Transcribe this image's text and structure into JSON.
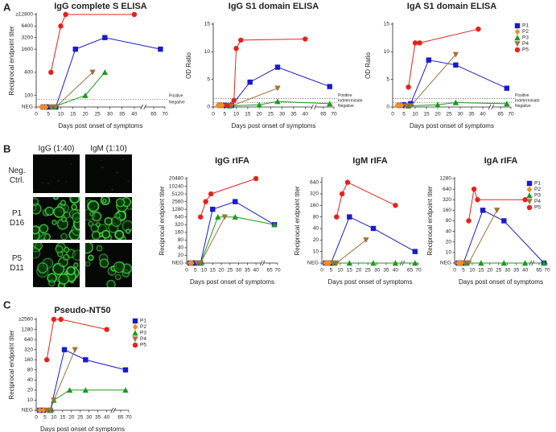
{
  "panel_labels": [
    "A",
    "B",
    "C"
  ],
  "micrographs": {
    "columns": [
      "IgG (1:40)",
      "IgM (1:10)"
    ],
    "rows": [
      "Neg. Ctrl.",
      "P1 D16",
      "P5 D11"
    ]
  },
  "chart_data": [
    {
      "type": "line",
      "title": "IgG complete S ELISA",
      "xlabel": "Days post onset of symptoms",
      "ylabel": "Reciprocal endpoint titer",
      "yscale": "log",
      "xlim": [
        0,
        70
      ],
      "axis_break": [
        42,
        62
      ],
      "xticks": [
        0,
        5,
        10,
        15,
        20,
        25,
        30,
        35,
        40,
        65,
        70
      ],
      "ylim": [
        50,
        12800
      ],
      "yticks": [
        {
          "value": 50,
          "label": "NEG"
        },
        100,
        400,
        1600,
        3200,
        6400,
        {
          "value": 12800,
          "label": "≥12800"
        }
      ],
      "cutoffs": [
        80
      ],
      "annotations": [
        "Positive",
        "Negative"
      ],
      "series": [
        {
          "name": "P1",
          "color": "#1a1acc",
          "marker": "square",
          "x": [
            3,
            4,
            5,
            8,
            16,
            28,
            68
          ],
          "values": [
            50,
            50,
            50,
            50,
            1600,
            3200,
            1600
          ]
        },
        {
          "name": "P2",
          "color": "#f0901e",
          "marker": "diamond",
          "x": [
            2,
            3,
            4
          ],
          "values": [
            50,
            50,
            50
          ]
        },
        {
          "name": "P3",
          "color": "#1a9a1a",
          "marker": "triangle-up",
          "x": [
            7,
            20,
            28
          ],
          "values": [
            50,
            100,
            400
          ]
        },
        {
          "name": "P4",
          "color": "#a0723a",
          "marker": "triangle-down",
          "x": [
            6,
            8,
            23
          ],
          "values": [
            50,
            50,
            400
          ]
        },
        {
          "name": "P5",
          "color": "#e8201a",
          "marker": "circle",
          "x": [
            6,
            10,
            12,
            40
          ],
          "values": [
            400,
            6400,
            12800,
            12800
          ]
        }
      ]
    },
    {
      "type": "line",
      "title": "IgG S1 domain ELISA",
      "xlabel": "Days post onset of symptoms",
      "ylabel": "OD Ratio",
      "yscale": "linear",
      "xlim": [
        0,
        70
      ],
      "axis_break": [
        42,
        62
      ],
      "xticks": [
        0,
        5,
        10,
        15,
        20,
        25,
        30,
        35,
        40,
        65,
        70
      ],
      "ylim": [
        0,
        15
      ],
      "yticks": [
        0,
        5,
        10,
        15
      ],
      "cutoffs": [
        0.8,
        1.5
      ],
      "annotations": [
        "Positive",
        "Indeterminate",
        "Negative"
      ],
      "series": [
        {
          "name": "P1",
          "color": "#1a1acc",
          "marker": "square",
          "x": [
            3,
            4,
            5,
            8,
            16,
            28,
            68
          ],
          "values": [
            0.3,
            0.3,
            0.3,
            0.3,
            4.5,
            7.2,
            3.7
          ]
        },
        {
          "name": "P2",
          "color": "#f0901e",
          "marker": "diamond",
          "x": [
            2,
            3,
            4
          ],
          "values": [
            0.3,
            0.3,
            0.3
          ]
        },
        {
          "name": "P3",
          "color": "#1a9a1a",
          "marker": "triangle-up",
          "x": [
            7,
            20,
            28,
            68
          ],
          "values": [
            0.2,
            0.4,
            1.0,
            0.6
          ]
        },
        {
          "name": "P4",
          "color": "#a0723a",
          "marker": "triangle-down",
          "x": [
            6,
            8,
            28
          ],
          "values": [
            0.2,
            0.2,
            3.4
          ]
        },
        {
          "name": "P5",
          "color": "#e8201a",
          "marker": "circle",
          "x": [
            6,
            9,
            10,
            12,
            40
          ],
          "values": [
            0.3,
            1.2,
            10.6,
            12.1,
            12.3
          ]
        }
      ]
    },
    {
      "type": "line",
      "title": "IgA S1 domain ELISA",
      "xlabel": "Days post onset of symptoms",
      "ylabel": "OD Ratio",
      "yscale": "linear",
      "xlim": [
        0,
        70
      ],
      "axis_break": [
        42,
        62
      ],
      "xticks": [
        0,
        5,
        10,
        15,
        20,
        25,
        30,
        35,
        40,
        65,
        70
      ],
      "ylim": [
        0,
        15
      ],
      "yticks": [
        0,
        5,
        10,
        15
      ],
      "cutoffs": [
        0.8,
        1.5
      ],
      "annotations": [
        "Positive",
        "Indeterminate",
        "Negative"
      ],
      "legend": "right",
      "series": [
        {
          "name": "P1",
          "color": "#1a1acc",
          "marker": "square",
          "x": [
            3,
            4,
            5,
            8,
            16,
            28,
            68
          ],
          "values": [
            0.3,
            0.3,
            0.4,
            0.6,
            8.5,
            7.6,
            3.4
          ]
        },
        {
          "name": "P2",
          "color": "#f0901e",
          "marker": "diamond",
          "x": [
            2,
            3,
            4
          ],
          "values": [
            0.3,
            0.3,
            0.3
          ]
        },
        {
          "name": "P3",
          "color": "#1a9a1a",
          "marker": "triangle-up",
          "x": [
            7,
            20,
            28,
            68
          ],
          "values": [
            0.2,
            0.4,
            0.8,
            0.6
          ]
        },
        {
          "name": "P4",
          "color": "#a0723a",
          "marker": "triangle-down",
          "x": [
            6,
            8,
            28
          ],
          "values": [
            0.2,
            0.2,
            9.5
          ]
        },
        {
          "name": "P5",
          "color": "#e8201a",
          "marker": "circle",
          "x": [
            7,
            10,
            12,
            38
          ],
          "values": [
            3.6,
            11.6,
            11.6,
            14.1
          ]
        }
      ]
    },
    {
      "type": "line",
      "title": "IgG rIFA",
      "xlabel": "Days post onset of symptoms",
      "ylabel": "Reciprocal endpoint titer",
      "yscale": "log",
      "xlim": [
        0,
        70
      ],
      "axis_break": [
        42,
        62
      ],
      "xticks": [
        0,
        5,
        10,
        15,
        20,
        25,
        30,
        35,
        40,
        65,
        70
      ],
      "ylim": [
        10,
        20480
      ],
      "yticks": [
        {
          "value": 10,
          "label": "NEG"
        },
        20,
        40,
        80,
        160,
        320,
        640,
        1280,
        2560,
        5120,
        10240,
        20480
      ],
      "series": [
        {
          "name": "P1",
          "color": "#1a1acc",
          "marker": "square",
          "x": [
            2,
            3,
            4,
            5,
            8,
            15,
            28,
            68
          ],
          "values": [
            10,
            10,
            10,
            10,
            10,
            1280,
            2560,
            320
          ]
        },
        {
          "name": "P2",
          "color": "#f0901e",
          "marker": "diamond",
          "x": [
            2,
            3
          ],
          "values": [
            10,
            10
          ]
        },
        {
          "name": "P3",
          "color": "#1a9a1a",
          "marker": "triangle-up",
          "x": [
            8,
            18,
            28,
            68
          ],
          "values": [
            10,
            640,
            640,
            320
          ]
        },
        {
          "name": "P4",
          "color": "#a0723a",
          "marker": "triangle-down",
          "x": [
            6,
            8,
            22
          ],
          "values": [
            10,
            10,
            640
          ]
        },
        {
          "name": "P5",
          "color": "#e8201a",
          "marker": "circle",
          "x": [
            8,
            11,
            14,
            40
          ],
          "values": [
            640,
            2560,
            5120,
            20480
          ]
        }
      ]
    },
    {
      "type": "line",
      "title": "IgM rIFA",
      "xlabel": "Days post onset of symptoms",
      "ylabel": "Reciprocal endpoint titer",
      "yscale": "log",
      "xlim": [
        0,
        70
      ],
      "axis_break": [
        42,
        62
      ],
      "xticks": [
        0,
        5,
        10,
        15,
        20,
        25,
        30,
        35,
        40,
        65,
        70
      ],
      "ylim": [
        5,
        800
      ],
      "yticks": [
        {
          "value": 5,
          "label": "NEG"
        },
        10,
        20,
        40,
        80,
        160,
        320,
        640
      ],
      "series": [
        {
          "name": "P1",
          "color": "#1a1acc",
          "marker": "square",
          "x": [
            2,
            3,
            4,
            5,
            15,
            28,
            68
          ],
          "values": [
            5,
            5,
            5,
            5,
            80,
            40,
            10
          ]
        },
        {
          "name": "P2",
          "color": "#f0901e",
          "marker": "diamond",
          "x": [
            2,
            3,
            4
          ],
          "values": [
            5,
            5,
            5
          ]
        },
        {
          "name": "P3",
          "color": "#1a9a1a",
          "marker": "triangle-up",
          "x": [
            7,
            15,
            28,
            40,
            68
          ],
          "values": [
            5,
            5,
            5,
            5,
            5
          ]
        },
        {
          "name": "P4",
          "color": "#a0723a",
          "marker": "triangle-down",
          "x": [
            6,
            8,
            24
          ],
          "values": [
            5,
            5,
            20
          ]
        },
        {
          "name": "P5",
          "color": "#e8201a",
          "marker": "circle",
          "x": [
            8,
            11,
            14,
            40
          ],
          "values": [
            80,
            320,
            640,
            160
          ]
        }
      ]
    },
    {
      "type": "line",
      "title": "IgA rIFA",
      "xlabel": "Days post onset of symptoms",
      "ylabel": "Reciprocal endpoint titer",
      "yscale": "log",
      "xlim": [
        0,
        70
      ],
      "axis_break": [
        42,
        62
      ],
      "xticks": [
        0,
        5,
        10,
        15,
        20,
        25,
        30,
        35,
        40,
        65,
        70
      ],
      "ylim": [
        5,
        1280
      ],
      "yticks": [
        {
          "value": 5,
          "label": "NEG"
        },
        10,
        20,
        40,
        80,
        160,
        320,
        640,
        1280
      ],
      "legend": "upper right",
      "series": [
        {
          "name": "P1",
          "color": "#1a1acc",
          "marker": "square",
          "x": [
            2,
            3,
            4,
            5,
            16,
            28,
            68
          ],
          "values": [
            5,
            5,
            5,
            5,
            160,
            80,
            5
          ]
        },
        {
          "name": "P2",
          "color": "#f0901e",
          "marker": "diamond",
          "x": [
            2,
            3,
            4
          ],
          "values": [
            5,
            5,
            5
          ]
        },
        {
          "name": "P3",
          "color": "#1a9a1a",
          "marker": "triangle-up",
          "x": [
            7,
            15,
            28,
            40,
            68
          ],
          "values": [
            5,
            5,
            5,
            5,
            5
          ]
        },
        {
          "name": "P4",
          "color": "#a0723a",
          "marker": "triangle-down",
          "x": [
            6,
            8,
            24
          ],
          "values": [
            5,
            5,
            160
          ]
        },
        {
          "name": "P5",
          "color": "#e8201a",
          "marker": "circle",
          "x": [
            8,
            11,
            13,
            40
          ],
          "values": [
            80,
            640,
            320,
            320
          ]
        }
      ]
    },
    {
      "type": "line",
      "title": "Pseudo-NT50",
      "xlabel": "Days post onset of symptoms",
      "ylabel": "Reciprocal endpoint titer",
      "yscale": "log",
      "xlim": [
        0,
        70
      ],
      "axis_break": [
        42,
        62
      ],
      "xticks": [
        0,
        5,
        10,
        15,
        20,
        25,
        30,
        35,
        40,
        65,
        70
      ],
      "ylim": [
        5,
        2560
      ],
      "yticks": [
        {
          "value": 5,
          "label": "NEG"
        },
        10,
        20,
        40,
        80,
        160,
        320,
        640,
        1280,
        {
          "value": 2560,
          "label": "≥2560"
        }
      ],
      "legend": "right",
      "series": [
        {
          "name": "P1",
          "color": "#1a1acc",
          "marker": "square",
          "x": [
            2,
            4,
            8,
            16,
            28,
            68
          ],
          "values": [
            5,
            5,
            5,
            320,
            160,
            80
          ]
        },
        {
          "name": "P2",
          "color": "#f0901e",
          "marker": "diamond",
          "x": [
            2,
            4
          ],
          "values": [
            5,
            5
          ]
        },
        {
          "name": "P3",
          "color": "#1a9a1a",
          "marker": "triangle-up",
          "x": [
            8,
            10,
            19,
            28,
            68
          ],
          "values": [
            5,
            10,
            20,
            20,
            20
          ]
        },
        {
          "name": "P4",
          "color": "#a0723a",
          "marker": "triangle-down",
          "x": [
            6,
            8,
            10,
            22
          ],
          "values": [
            5,
            5,
            10,
            320
          ]
        },
        {
          "name": "P5",
          "color": "#e8201a",
          "marker": "circle",
          "x": [
            6,
            10,
            14,
            40
          ],
          "values": [
            160,
            2560,
            2560,
            1280
          ]
        }
      ]
    }
  ]
}
